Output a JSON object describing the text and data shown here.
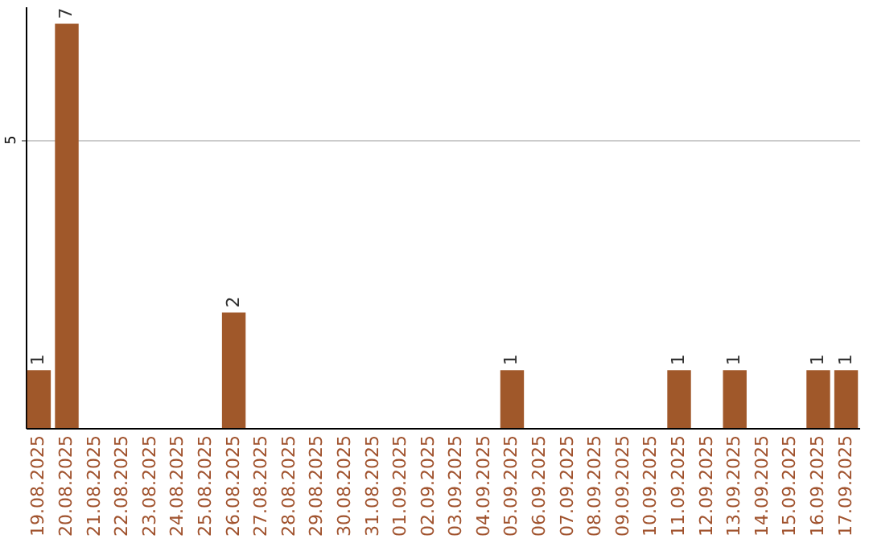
{
  "chart_data": {
    "type": "bar",
    "categories": [
      "19.08.2025",
      "20.08.2025",
      "21.08.2025",
      "22.08.2025",
      "23.08.2025",
      "24.08.2025",
      "25.08.2025",
      "26.08.2025",
      "27.08.2025",
      "28.08.2025",
      "29.08.2025",
      "30.08.2025",
      "31.08.2025",
      "01.09.2025",
      "02.09.2025",
      "03.09.2025",
      "04.09.2025",
      "05.09.2025",
      "06.09.2025",
      "07.09.2025",
      "08.09.2025",
      "09.09.2025",
      "10.09.2025",
      "11.09.2025",
      "12.09.2025",
      "13.09.2025",
      "14.09.2025",
      "15.09.2025",
      "16.09.2025",
      "17.09.2025"
    ],
    "values": [
      1,
      7,
      0,
      0,
      0,
      0,
      0,
      2,
      0,
      0,
      0,
      0,
      0,
      0,
      0,
      0,
      0,
      1,
      0,
      0,
      0,
      0,
      0,
      1,
      0,
      1,
      0,
      0,
      1,
      1
    ],
    "value_labels": [
      "1",
      "7",
      null,
      null,
      null,
      null,
      null,
      "2",
      null,
      null,
      null,
      null,
      null,
      null,
      null,
      null,
      null,
      "1",
      null,
      null,
      null,
      null,
      null,
      "1",
      null,
      "1",
      null,
      null,
      "1",
      "1"
    ],
    "color": "#a0582a",
    "ylim": [
      0,
      7.3
    ],
    "yticks": [
      5
    ],
    "grid": "y"
  }
}
